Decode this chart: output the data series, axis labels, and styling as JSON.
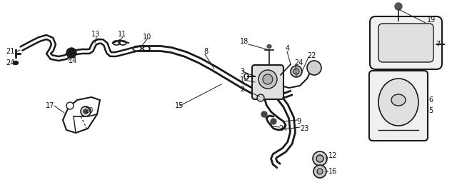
{
  "bg_color": "#ffffff",
  "line_color": "#1a1a1a",
  "text_color": "#111111",
  "fig_width": 6.4,
  "fig_height": 2.59,
  "dpi": 100
}
